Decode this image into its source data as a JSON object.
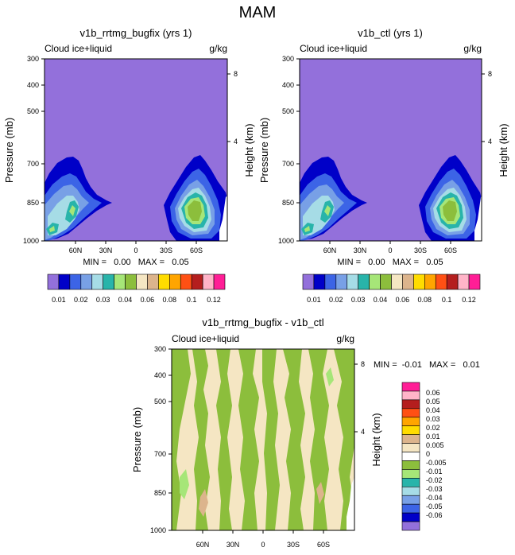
{
  "page_title": "MAM",
  "chart_data": [
    {
      "type": "contour",
      "title": "v1b_rrtmg_bugfix (yrs 1)",
      "left_label": "Cloud ice+liquid",
      "right_label": "g/kg",
      "ylabel": "Pressure (mb)",
      "y2label": "Height (km)",
      "x_ticks": [
        "60N",
        "30N",
        "0",
        "30S",
        "60S"
      ],
      "y_ticks": [
        "300",
        "400",
        "500",
        "700",
        "850",
        "1000"
      ],
      "y2_ticks": [
        "8",
        "4"
      ],
      "stats": "MIN =   0.00   MAX =   0.05",
      "levels": [
        "0.01",
        "0.02",
        "0.03",
        "0.04",
        "0.06",
        "0.08",
        "0.1",
        "0.12"
      ],
      "colors": [
        "#9370db",
        "#0000c8",
        "#3c64e6",
        "#78a0e6",
        "#a6dce6",
        "#28b4aa",
        "#a6e678",
        "#8cbe3c",
        "#f5e6c3",
        "#dcb48c",
        "#ffdc00",
        "#ffa500",
        "#ff5014",
        "#b41e1e",
        "#ffb4c8",
        "#ff1e96"
      ]
    },
    {
      "type": "contour",
      "title": "v1b_ctl (yrs 1)",
      "left_label": "Cloud ice+liquid",
      "right_label": "g/kg",
      "ylabel": "Pressure (mb)",
      "y2label": "Height (km)",
      "x_ticks": [
        "60N",
        "30N",
        "0",
        "30S",
        "60S"
      ],
      "y_ticks": [
        "300",
        "400",
        "500",
        "700",
        "850",
        "1000"
      ],
      "y2_ticks": [
        "8",
        "4"
      ],
      "stats": "MIN =   0.00   MAX =   0.05",
      "levels": [
        "0.01",
        "0.02",
        "0.03",
        "0.04",
        "0.06",
        "0.08",
        "0.1",
        "0.12"
      ],
      "colors": [
        "#9370db",
        "#0000c8",
        "#3c64e6",
        "#78a0e6",
        "#a6dce6",
        "#28b4aa",
        "#a6e678",
        "#8cbe3c",
        "#f5e6c3",
        "#dcb48c",
        "#ffdc00",
        "#ffa500",
        "#ff5014",
        "#b41e1e",
        "#ffb4c8",
        "#ff1e96"
      ]
    },
    {
      "type": "contour",
      "title": "v1b_rrtmg_bugfix - v1b_ctl",
      "left_label": "Cloud ice+liquid",
      "right_label": "g/kg",
      "ylabel": "Pressure (mb)",
      "y2label": "Height (km)",
      "x_ticks": [
        "60N",
        "30N",
        "0",
        "30S",
        "60S"
      ],
      "y_ticks": [
        "300",
        "400",
        "500",
        "700",
        "850",
        "1000"
      ],
      "y2_ticks": [
        "8",
        "4"
      ],
      "stats": "MIN =  -0.01   MAX =   0.01",
      "levels": [
        "0.06",
        "0.05",
        "0.04",
        "0.03",
        "0.02",
        "0.01",
        "0.005",
        "0",
        "-0.005",
        "-0.01",
        "-0.02",
        "-0.03",
        "-0.04",
        "-0.05",
        "-0.06"
      ],
      "colors": [
        "#ff1e96",
        "#ffb4c8",
        "#b41e1e",
        "#ff5014",
        "#ffa500",
        "#ffdc00",
        "#dcb48c",
        "#f5e6c3",
        "#ffffff",
        "#8cbe3c",
        "#a6e678",
        "#28b4aa",
        "#a6dce6",
        "#78a0e6",
        "#3c64e6",
        "#0000c8",
        "#9370db"
      ]
    }
  ]
}
